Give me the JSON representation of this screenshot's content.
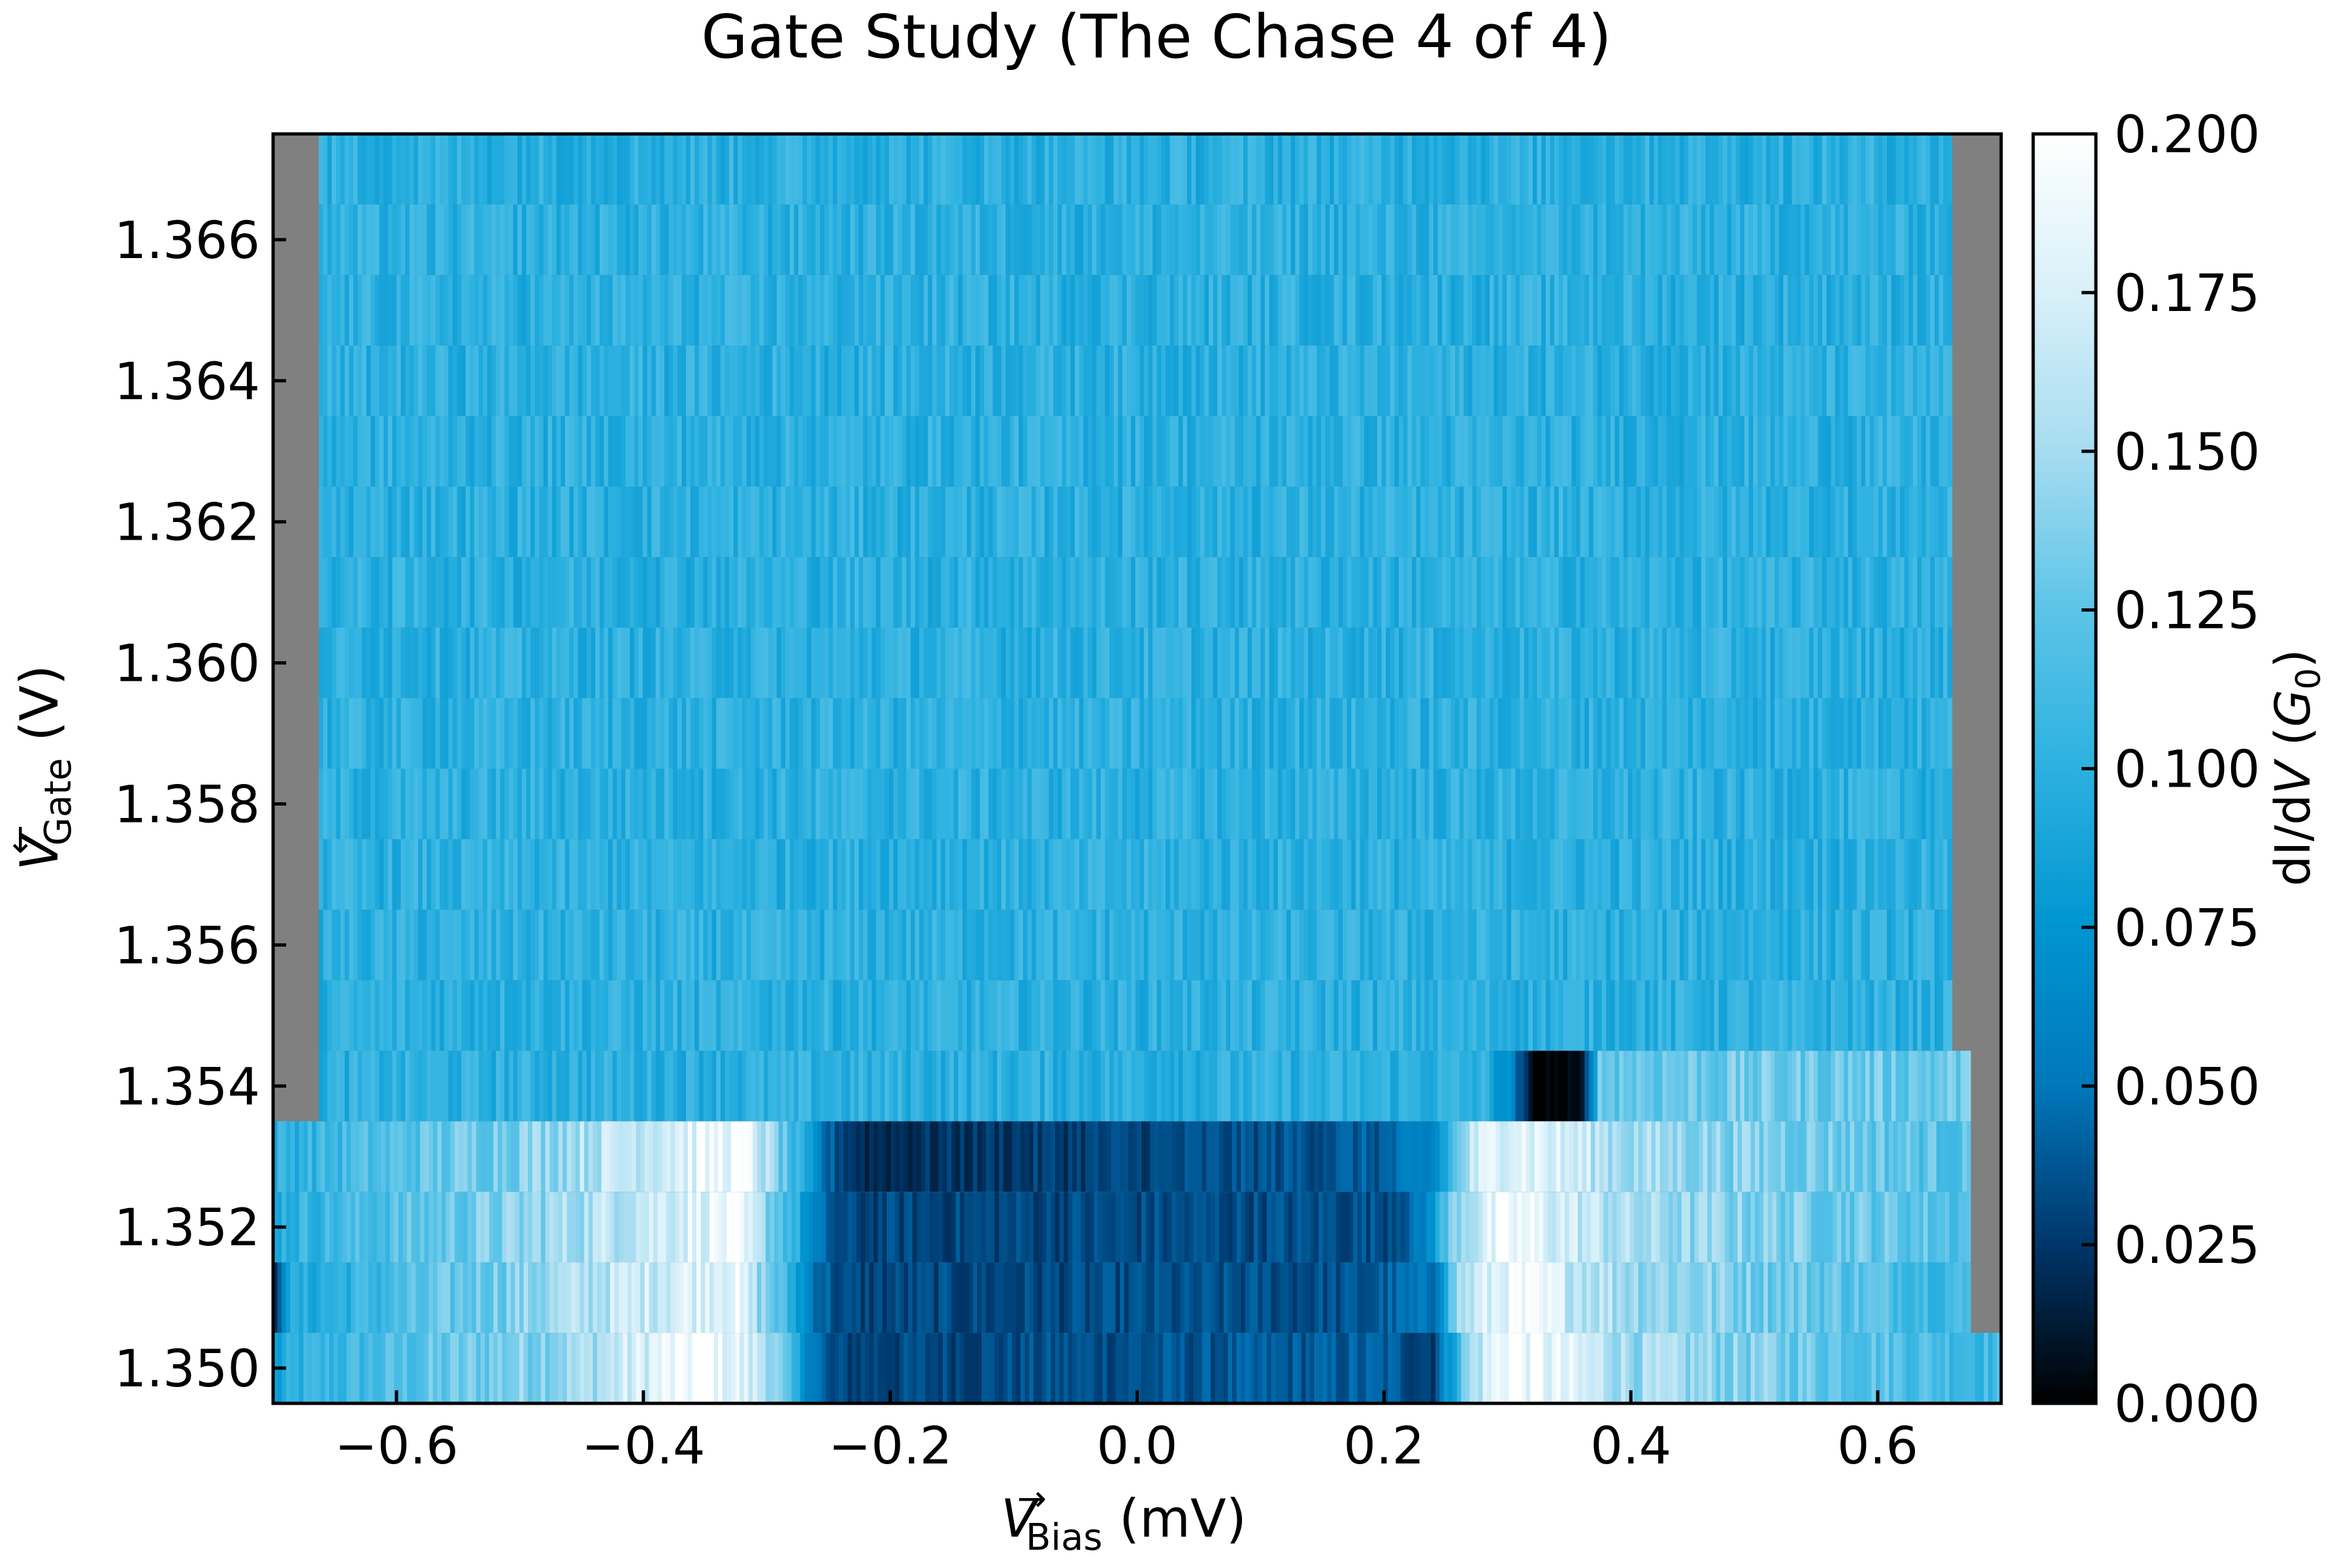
{
  "chart_data": {
    "type": "heatmap",
    "title": "Gate Study (The Chase 4 of 4)",
    "xlabel": {
      "var": "V",
      "sup": "→",
      "sub": "Bias",
      "unit": " (mV)"
    },
    "ylabel": {
      "var": "V",
      "sup": "←",
      "sub": "Gate",
      "unit": " (V)"
    },
    "colorbar_label": {
      "pre": "dI/d",
      "var": "V",
      "mid": " (",
      "g": "G",
      "sub": "0",
      "post": ")"
    },
    "xlim": [
      -0.7,
      0.7
    ],
    "ylim": [
      1.3495,
      1.3675
    ],
    "xticks": [
      -0.6,
      -0.4,
      -0.2,
      0.0,
      0.2,
      0.4,
      0.6
    ],
    "xtick_labels": [
      "−0.6",
      "−0.4",
      "−0.2",
      "0.0",
      "0.2",
      "0.4",
      "0.6"
    ],
    "yticks": [
      1.35,
      1.352,
      1.354,
      1.356,
      1.358,
      1.36,
      1.362,
      1.364,
      1.366
    ],
    "ytick_labels": [
      "1.350",
      "1.352",
      "1.354",
      "1.356",
      "1.358",
      "1.360",
      "1.362",
      "1.364",
      "1.366"
    ],
    "clim": [
      0.0,
      0.2
    ],
    "cticks": [
      0.0,
      0.025,
      0.05,
      0.075,
      0.1,
      0.125,
      0.15,
      0.175,
      0.2
    ],
    "ctick_labels": [
      "0.000",
      "0.025",
      "0.050",
      "0.075",
      "0.100",
      "0.125",
      "0.150",
      "0.175",
      "0.200"
    ],
    "colormap": [
      "#000000",
      "#00366a",
      "#0077bb",
      "#0095d1",
      "#2cb1e0",
      "#5cc4e8",
      "#a6dcf0",
      "#d8f0f9",
      "#ffffff"
    ],
    "nodata_color": "#808080",
    "rows": [
      {
        "y0": 1.3495,
        "y1": 1.3505,
        "x0": -0.7,
        "x1": 0.7,
        "profile": [
          [
            -0.7,
            0.08
          ],
          [
            -0.68,
            0.1
          ],
          [
            -0.45,
            0.15
          ],
          [
            -0.35,
            0.2
          ],
          [
            -0.3,
            0.16
          ],
          [
            -0.27,
            0.075
          ],
          [
            -0.25,
            0.03
          ],
          [
            0.2,
            0.04
          ],
          [
            0.24,
            0.03
          ],
          [
            0.27,
            0.15
          ],
          [
            0.3,
            0.2
          ],
          [
            0.4,
            0.15
          ],
          [
            0.7,
            0.11
          ]
        ]
      },
      {
        "y0": 1.3505,
        "y1": 1.3515,
        "x0": -0.7,
        "x1": 0.675,
        "profile": [
          [
            -0.7,
            0.0
          ],
          [
            -0.69,
            0.09
          ],
          [
            -0.5,
            0.14
          ],
          [
            -0.33,
            0.19
          ],
          [
            -0.29,
            0.12
          ],
          [
            -0.26,
            0.05
          ],
          [
            -0.24,
            0.03
          ],
          [
            0.18,
            0.035
          ],
          [
            0.24,
            0.05
          ],
          [
            0.26,
            0.15
          ],
          [
            0.3,
            0.19
          ],
          [
            0.4,
            0.15
          ],
          [
            0.675,
            0.11
          ]
        ]
      },
      {
        "y0": 1.3515,
        "y1": 1.3525,
        "x0": -0.7,
        "x1": 0.675,
        "profile": [
          [
            -0.7,
            0.1
          ],
          [
            -0.5,
            0.14
          ],
          [
            -0.33,
            0.19
          ],
          [
            -0.28,
            0.11
          ],
          [
            -0.26,
            0.05
          ],
          [
            -0.24,
            0.03
          ],
          [
            0.2,
            0.035
          ],
          [
            0.23,
            0.05
          ],
          [
            0.26,
            0.15
          ],
          [
            0.3,
            0.19
          ],
          [
            0.4,
            0.15
          ],
          [
            0.675,
            0.12
          ]
        ]
      },
      {
        "y0": 1.3525,
        "y1": 1.3535,
        "x0": -0.7,
        "x1": 0.675,
        "profile": [
          [
            -0.7,
            0.1
          ],
          [
            -0.5,
            0.14
          ],
          [
            -0.32,
            0.195
          ],
          [
            -0.28,
            0.11
          ],
          [
            -0.25,
            0.04
          ],
          [
            -0.22,
            0.02
          ],
          [
            0.2,
            0.04
          ],
          [
            0.24,
            0.06
          ],
          [
            0.27,
            0.16
          ],
          [
            0.3,
            0.19
          ],
          [
            0.4,
            0.15
          ],
          [
            0.675,
            0.12
          ]
        ]
      },
      {
        "y0": 1.3535,
        "y1": 1.3545,
        "x0": -0.663,
        "x1": 0.675,
        "profile": [
          [
            -0.663,
            0.1
          ],
          [
            0.28,
            0.1
          ],
          [
            0.3,
            0.07
          ],
          [
            0.32,
            0.0
          ],
          [
            0.36,
            0.0
          ],
          [
            0.375,
            0.13
          ],
          [
            0.675,
            0.13
          ]
        ]
      },
      {
        "y0": 1.3545,
        "y1": 1.3555,
        "x0": -0.663,
        "x1": 0.66,
        "profile": [
          [
            -0.663,
            0.1
          ],
          [
            0.66,
            0.1
          ]
        ]
      },
      {
        "y0": 1.3555,
        "y1": 1.3565,
        "x0": -0.663,
        "x1": 0.66,
        "profile": [
          [
            -0.663,
            0.1
          ],
          [
            0.66,
            0.1
          ]
        ]
      },
      {
        "y0": 1.3565,
        "y1": 1.3575,
        "x0": -0.663,
        "x1": 0.66,
        "profile": [
          [
            -0.663,
            0.1
          ],
          [
            0.66,
            0.1
          ]
        ]
      },
      {
        "y0": 1.3575,
        "y1": 1.3585,
        "x0": -0.663,
        "x1": 0.66,
        "profile": [
          [
            -0.663,
            0.1
          ],
          [
            0.66,
            0.1
          ]
        ]
      },
      {
        "y0": 1.3585,
        "y1": 1.3595,
        "x0": -0.663,
        "x1": 0.66,
        "profile": [
          [
            -0.663,
            0.1
          ],
          [
            0.66,
            0.1
          ]
        ]
      },
      {
        "y0": 1.3595,
        "y1": 1.3605,
        "x0": -0.663,
        "x1": 0.66,
        "profile": [
          [
            -0.663,
            0.1
          ],
          [
            0.66,
            0.1
          ]
        ]
      },
      {
        "y0": 1.3605,
        "y1": 1.3615,
        "x0": -0.663,
        "x1": 0.66,
        "profile": [
          [
            -0.663,
            0.1
          ],
          [
            0.66,
            0.1
          ]
        ]
      },
      {
        "y0": 1.3615,
        "y1": 1.3625,
        "x0": -0.663,
        "x1": 0.66,
        "profile": [
          [
            -0.663,
            0.1
          ],
          [
            0.66,
            0.1
          ]
        ]
      },
      {
        "y0": 1.3625,
        "y1": 1.3635,
        "x0": -0.663,
        "x1": 0.66,
        "profile": [
          [
            -0.663,
            0.1
          ],
          [
            0.66,
            0.1
          ]
        ]
      },
      {
        "y0": 1.3635,
        "y1": 1.3645,
        "x0": -0.663,
        "x1": 0.66,
        "profile": [
          [
            -0.663,
            0.1
          ],
          [
            0.66,
            0.1
          ]
        ]
      },
      {
        "y0": 1.3645,
        "y1": 1.3655,
        "x0": -0.663,
        "x1": 0.66,
        "profile": [
          [
            -0.663,
            0.1
          ],
          [
            0.66,
            0.1
          ]
        ]
      },
      {
        "y0": 1.3655,
        "y1": 1.3665,
        "x0": -0.663,
        "x1": 0.66,
        "profile": [
          [
            -0.663,
            0.1
          ],
          [
            0.66,
            0.1
          ]
        ]
      },
      {
        "y0": 1.3665,
        "y1": 1.3675,
        "x0": -0.663,
        "x1": 0.66,
        "profile": [
          [
            -0.663,
            0.1
          ],
          [
            0.66,
            0.1
          ]
        ]
      }
    ]
  }
}
